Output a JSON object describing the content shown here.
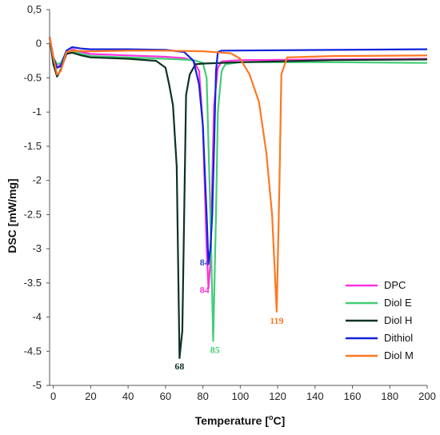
{
  "chart_data": {
    "type": "line",
    "xlabel_main": "Temperature [",
    "xlabel_sup": "o",
    "xlabel_end": "C]",
    "ylabel": "DSC [mW/mg]",
    "xlim": [
      -2,
      200
    ],
    "ylim": [
      -5,
      0.5
    ],
    "x_ticks": [
      0,
      20,
      40,
      60,
      80,
      100,
      120,
      140,
      160,
      180,
      200
    ],
    "x_tick_labels": [
      "0",
      "20",
      "40",
      "60",
      "80",
      "100",
      "120",
      "140",
      "160",
      "180",
      "200"
    ],
    "y_ticks": [
      0.5,
      0,
      -0.5,
      -1,
      -1.5,
      -2,
      -2.5,
      -3,
      -3.5,
      -4,
      -4.5,
      -5
    ],
    "y_tick_labels": [
      "0,5",
      "0",
      "-0.5",
      "-1",
      "-1.5",
      "-2",
      "-2.5",
      "-3",
      "-3.5",
      "-4",
      "-4.5",
      "-5"
    ],
    "grid": false,
    "legend_position": "bottom-right",
    "series": [
      {
        "name": "DPC",
        "color": "#ff33dd",
        "points": [
          [
            -2,
            0.1
          ],
          [
            0,
            -0.2
          ],
          [
            2,
            -0.35
          ],
          [
            4,
            -0.3
          ],
          [
            7,
            -0.15
          ],
          [
            10,
            -0.08
          ],
          [
            15,
            -0.12
          ],
          [
            20,
            -0.15
          ],
          [
            40,
            -0.17
          ],
          [
            60,
            -0.19
          ],
          [
            70,
            -0.21
          ],
          [
            75,
            -0.25
          ],
          [
            78,
            -0.4
          ],
          [
            80,
            -1.2
          ],
          [
            82,
            -3.0
          ],
          [
            83,
            -3.58
          ],
          [
            84,
            -3.2
          ],
          [
            85,
            -2.0
          ],
          [
            86,
            -0.9
          ],
          [
            88,
            -0.35
          ],
          [
            90,
            -0.26
          ],
          [
            100,
            -0.24
          ],
          [
            150,
            -0.23
          ],
          [
            200,
            -0.22
          ]
        ]
      },
      {
        "name": "Diol E",
        "color": "#44cc77",
        "points": [
          [
            -2,
            0.08
          ],
          [
            0,
            -0.2
          ],
          [
            2,
            -0.3
          ],
          [
            4,
            -0.28
          ],
          [
            7,
            -0.12
          ],
          [
            10,
            -0.1
          ],
          [
            15,
            -0.15
          ],
          [
            20,
            -0.18
          ],
          [
            40,
            -0.2
          ],
          [
            60,
            -0.22
          ],
          [
            75,
            -0.24
          ],
          [
            80,
            -0.28
          ],
          [
            82,
            -0.5
          ],
          [
            84,
            -2.5
          ],
          [
            85.5,
            -4.35
          ],
          [
            87,
            -2.5
          ],
          [
            88,
            -1.0
          ],
          [
            90,
            -0.4
          ],
          [
            92,
            -0.3
          ],
          [
            100,
            -0.27
          ],
          [
            150,
            -0.27
          ],
          [
            200,
            -0.28
          ]
        ]
      },
      {
        "name": "Diol H",
        "color": "#0d3322",
        "points": [
          [
            -2,
            0.1
          ],
          [
            0,
            -0.3
          ],
          [
            2,
            -0.48
          ],
          [
            4,
            -0.38
          ],
          [
            7,
            -0.15
          ],
          [
            10,
            -0.13
          ],
          [
            15,
            -0.17
          ],
          [
            20,
            -0.2
          ],
          [
            40,
            -0.22
          ],
          [
            55,
            -0.25
          ],
          [
            60,
            -0.35
          ],
          [
            62,
            -0.6
          ],
          [
            64,
            -0.9
          ],
          [
            66,
            -1.8
          ],
          [
            67.5,
            -4.6
          ],
          [
            69,
            -4.2
          ],
          [
            71,
            -0.75
          ],
          [
            73,
            -0.45
          ],
          [
            76,
            -0.3
          ],
          [
            80,
            -0.29
          ],
          [
            100,
            -0.27
          ],
          [
            150,
            -0.24
          ],
          [
            200,
            -0.23
          ]
        ]
      },
      {
        "name": "Dithiol",
        "color": "#1122dd",
        "points": [
          [
            -2,
            0.1
          ],
          [
            0,
            -0.2
          ],
          [
            2,
            -0.35
          ],
          [
            4,
            -0.33
          ],
          [
            7,
            -0.1
          ],
          [
            10,
            -0.05
          ],
          [
            15,
            -0.07
          ],
          [
            20,
            -0.08
          ],
          [
            40,
            -0.08
          ],
          [
            60,
            -0.09
          ],
          [
            70,
            -0.12
          ],
          [
            75,
            -0.25
          ],
          [
            78,
            -0.6
          ],
          [
            80,
            -1.2
          ],
          [
            82,
            -2.5
          ],
          [
            83,
            -3.22
          ],
          [
            84,
            -3.0
          ],
          [
            85,
            -2.5
          ],
          [
            86,
            -1.5
          ],
          [
            87,
            -0.4
          ],
          [
            88,
            -0.12
          ],
          [
            90,
            -0.1
          ],
          [
            150,
            -0.09
          ],
          [
            200,
            -0.08
          ]
        ]
      },
      {
        "name": "Diol M",
        "color": "#ff7722",
        "points": [
          [
            -2,
            0.1
          ],
          [
            0,
            -0.2
          ],
          [
            2,
            -0.45
          ],
          [
            4,
            -0.4
          ],
          [
            7,
            -0.12
          ],
          [
            10,
            -0.1
          ],
          [
            20,
            -0.11
          ],
          [
            40,
            -0.1
          ],
          [
            60,
            -0.1
          ],
          [
            80,
            -0.11
          ],
          [
            95,
            -0.14
          ],
          [
            100,
            -0.22
          ],
          [
            105,
            -0.45
          ],
          [
            110,
            -0.85
          ],
          [
            114,
            -1.6
          ],
          [
            117,
            -2.5
          ],
          [
            119.5,
            -3.92
          ],
          [
            121,
            -2.0
          ],
          [
            122,
            -0.45
          ],
          [
            125,
            -0.2
          ],
          [
            150,
            -0.18
          ],
          [
            200,
            -0.17
          ]
        ]
      }
    ],
    "annotations": [
      {
        "text": "84",
        "x": 83.5,
        "y": -3.2,
        "color": "#3344cc",
        "anchor": "end"
      },
      {
        "text": "84",
        "x": 83.5,
        "y": -3.6,
        "color": "#ff33dd",
        "anchor": "end"
      },
      {
        "text": "68",
        "x": 67.5,
        "y": -4.72,
        "color": "#0d3322",
        "anchor": "middle"
      },
      {
        "text": "85",
        "x": 86.5,
        "y": -4.48,
        "color": "#44cc77",
        "anchor": "middle"
      },
      {
        "text": "119",
        "x": 119.5,
        "y": -4.05,
        "color": "#ff7722",
        "anchor": "middle"
      }
    ]
  }
}
